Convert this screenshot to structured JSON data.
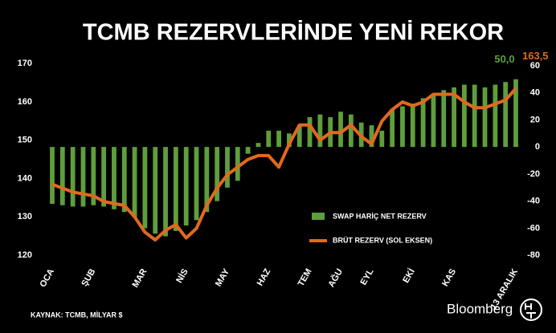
{
  "chart_data": {
    "type": "combo",
    "title": "TCMB REZERVLERİNDE YENİ REKOR",
    "source": "KAYNAK: TCMB, MİLYAR $",
    "brand": "Bloomberg",
    "categories": [
      "OCA",
      null,
      null,
      null,
      "ŞUB",
      null,
      null,
      null,
      null,
      "MAR",
      null,
      null,
      null,
      "NİS",
      null,
      null,
      null,
      "MAY",
      null,
      null,
      null,
      "HAZ",
      null,
      null,
      null,
      "TEM",
      null,
      null,
      "AĞU",
      null,
      null,
      "EYL",
      null,
      null,
      null,
      "EKİ",
      null,
      null,
      null,
      "KAS",
      null,
      null,
      null,
      null,
      null,
      "13 ARALIK"
    ],
    "ylim": [
      117.5,
      173
    ],
    "yticks": [
      120,
      130,
      140,
      150,
      160,
      170
    ],
    "y2lim": [
      -87,
      70
    ],
    "y2ticks": [
      -80,
      -60,
      -40,
      -20,
      0,
      20,
      40,
      60
    ],
    "series": [
      {
        "name": "SWAP HARİÇ NET REZERV",
        "type": "bar",
        "axis": "y2",
        "color": "#5f9e3c",
        "values": [
          -42,
          -43,
          -44,
          -44,
          -43,
          -44,
          -46,
          -48,
          -52,
          -60,
          -64,
          -66,
          -62,
          -58,
          -54,
          -48,
          -40,
          -30,
          -25,
          -5,
          3,
          12,
          12,
          10,
          16,
          22,
          24,
          22,
          26,
          24,
          18,
          16,
          12,
          28,
          30,
          32,
          36,
          38,
          42,
          44,
          46,
          46,
          44,
          46,
          48,
          50
        ],
        "value_labels": [
          null,
          null,
          null,
          null,
          null,
          null,
          null,
          null,
          null,
          null,
          null,
          null,
          null,
          null,
          null,
          null,
          null,
          null,
          null,
          null,
          null,
          null,
          null,
          null,
          null,
          null,
          null,
          null,
          null,
          null,
          null,
          null,
          null,
          null,
          null,
          null,
          null,
          null,
          null,
          null,
          null,
          null,
          null,
          null,
          null,
          "50,0"
        ]
      },
      {
        "name": "BRÜT REZERV (SOL EKSEN)",
        "type": "line",
        "axis": "y",
        "color": "#e2691f",
        "values": [
          138.5,
          137.5,
          136.5,
          136,
          135.5,
          134,
          133.5,
          133,
          130,
          126,
          124,
          126.5,
          128,
          124.5,
          127,
          133,
          137.5,
          141,
          143,
          145,
          146,
          146,
          143,
          149,
          154,
          154,
          150,
          152,
          152,
          154,
          151,
          149,
          155,
          158,
          160,
          159,
          160,
          162,
          162,
          162,
          160,
          158.5,
          158.5,
          159.5,
          160.5,
          163.5
        ],
        "value_labels": [
          null,
          null,
          null,
          null,
          null,
          null,
          null,
          null,
          null,
          null,
          null,
          null,
          null,
          null,
          null,
          null,
          null,
          null,
          null,
          null,
          null,
          null,
          null,
          null,
          null,
          null,
          null,
          null,
          null,
          null,
          null,
          null,
          null,
          null,
          null,
          null,
          null,
          null,
          null,
          null,
          null,
          null,
          null,
          null,
          null,
          "163,5"
        ]
      }
    ]
  }
}
